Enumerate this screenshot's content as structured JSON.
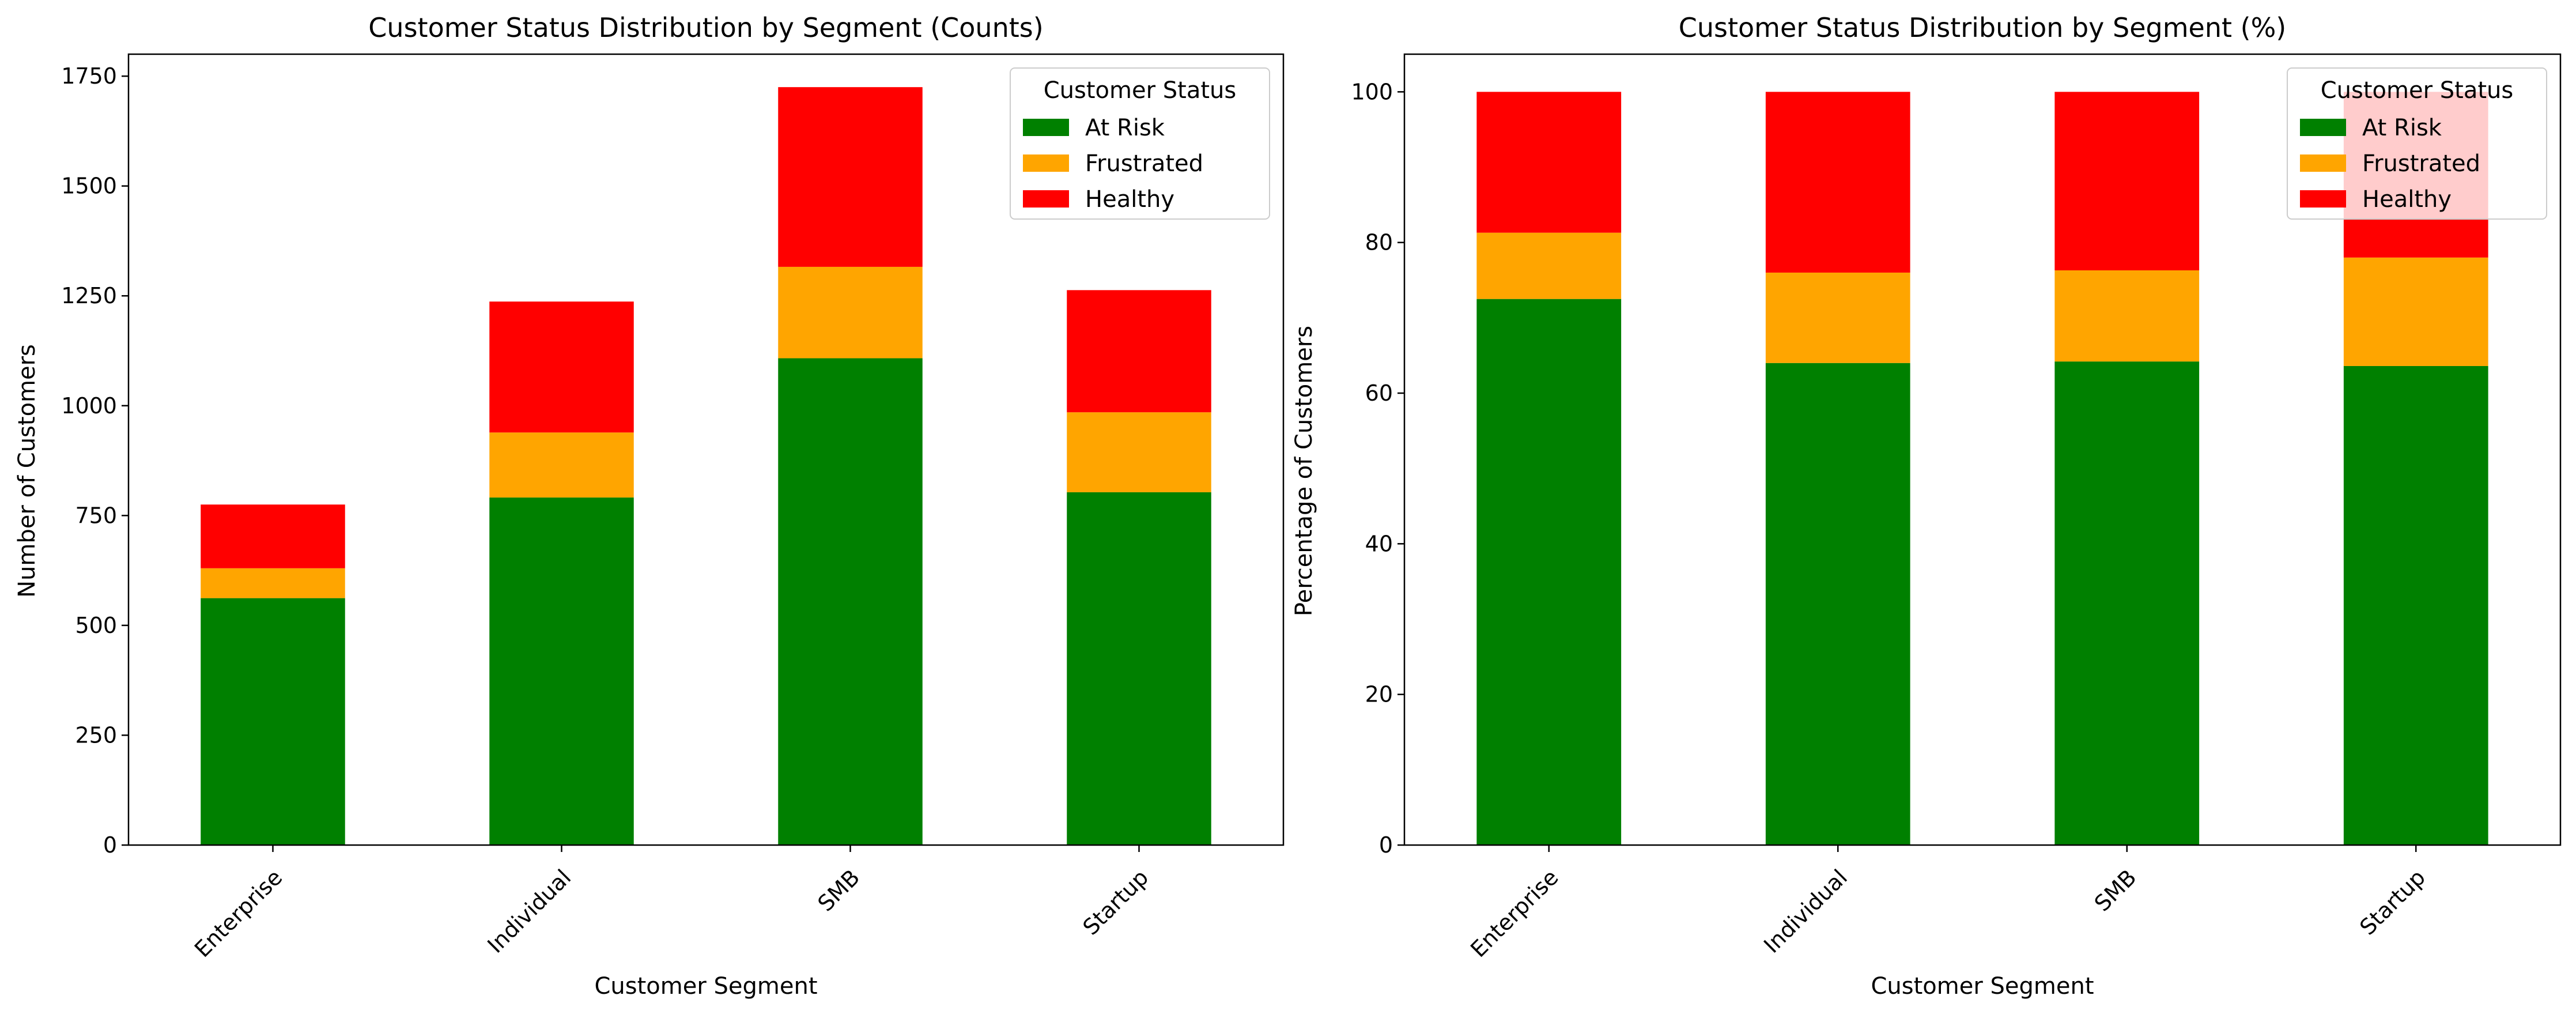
{
  "colors": {
    "At Risk": "#008000",
    "Frustrated": "#ffa500",
    "Healthy": "#ff0000"
  },
  "chart_data": [
    {
      "type": "bar",
      "stacked": true,
      "title": "Customer Status Distribution by Segment (Counts)",
      "xlabel": "Customer Segment",
      "ylabel": "Number of Customers",
      "categories": [
        "Enterprise",
        "Individual",
        "SMB",
        "Startup"
      ],
      "ylim": [
        0,
        1800
      ],
      "yticks": [
        0,
        250,
        500,
        750,
        1000,
        1250,
        1500,
        1750
      ],
      "legend": {
        "title": "Customer Status",
        "placement": "top-right"
      },
      "grid": false,
      "series": [
        {
          "name": "At Risk",
          "values": [
            562,
            791,
            1108,
            803
          ]
        },
        {
          "name": "Frustrated",
          "values": [
            68,
            148,
            208,
            182
          ]
        },
        {
          "name": "Healthy",
          "values": [
            145,
            298,
            409,
            278
          ]
        }
      ]
    },
    {
      "type": "bar",
      "stacked": true,
      "title": "Customer Status Distribution by Segment (%)",
      "xlabel": "Customer Segment",
      "ylabel": "Percentage of Customers",
      "categories": [
        "Enterprise",
        "Individual",
        "SMB",
        "Startup"
      ],
      "ylim": [
        0,
        105
      ],
      "yticks": [
        0,
        20,
        40,
        60,
        80,
        100
      ],
      "legend": {
        "title": "Customer Status",
        "placement": "top-right"
      },
      "grid": false,
      "series": [
        {
          "name": "At Risk",
          "values": [
            72.5,
            64.0,
            64.2,
            63.6
          ]
        },
        {
          "name": "Frustrated",
          "values": [
            8.8,
            12.0,
            12.1,
            14.4
          ]
        },
        {
          "name": "Healthy",
          "values": [
            18.7,
            24.0,
            23.7,
            22.0
          ]
        }
      ]
    }
  ]
}
